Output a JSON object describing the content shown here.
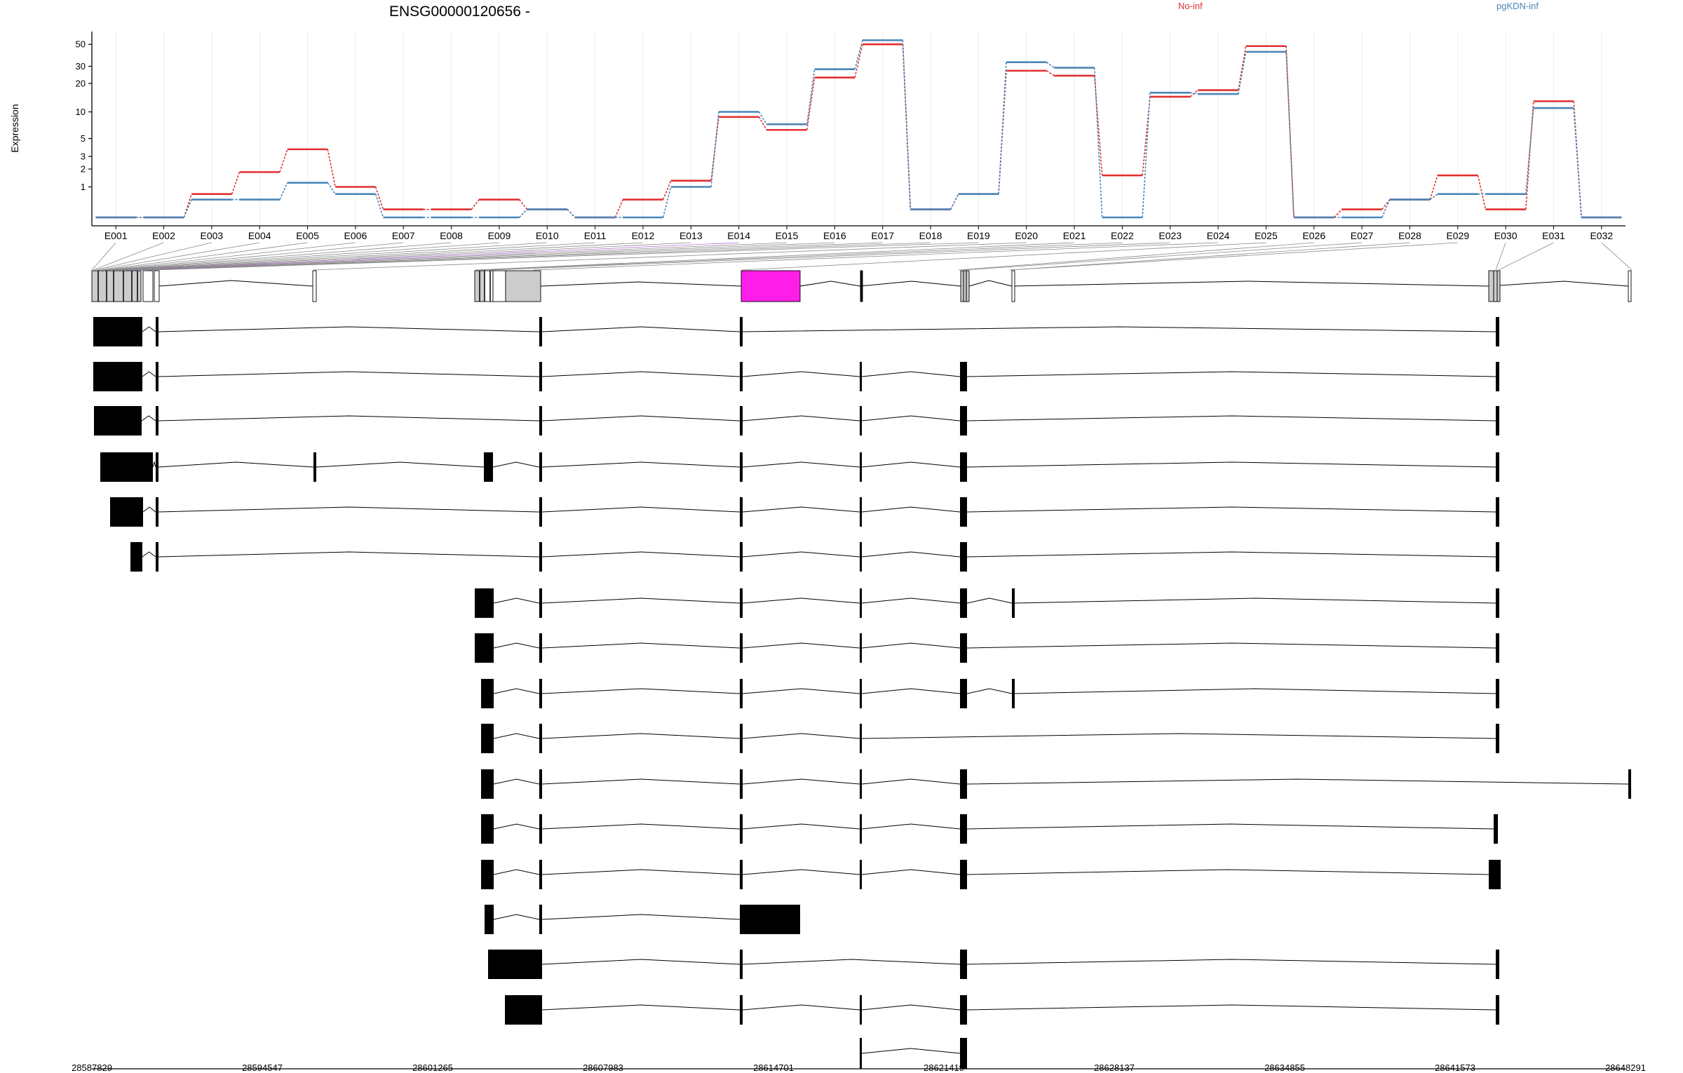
{
  "chart_data": {
    "type": "line",
    "title": "ENSG00000120656 -",
    "xlabel": "",
    "ylabel": "Expression",
    "yscale": "log",
    "yticks": [
      1,
      2,
      3,
      5,
      10,
      20,
      30,
      50
    ],
    "ytick_labels": [
      "1",
      "2",
      "3",
      "5",
      "10",
      "20",
      "30",
      "50"
    ],
    "ylim": [
      0,
      60
    ],
    "grid": true,
    "legend_position": "top",
    "colors": {
      "No-inf": "#e03030",
      "pgKDN-inf": "#4a86b8",
      "highlight": "#ff1ee8",
      "exon": "#000000",
      "exon_shaded": "#cccccc"
    },
    "categories": [
      "E001",
      "E002",
      "E003",
      "E004",
      "E005",
      "E006",
      "E007",
      "E008",
      "E009",
      "E010",
      "E011",
      "E012",
      "E013",
      "E014",
      "E015",
      "E016",
      "E017",
      "E018",
      "E019",
      "E020",
      "E021",
      "E022",
      "E023",
      "E024",
      "E025",
      "E026",
      "E027",
      "E028",
      "E029",
      "E030",
      "E031",
      "E032"
    ],
    "series": [
      {
        "name": "No-inf",
        "color": "#e03030",
        "values": [
          0,
          0,
          0.7,
          1.8,
          3.7,
          1.0,
          0.2,
          0.2,
          0.5,
          0.2,
          0,
          0.5,
          1.3,
          8.8,
          6.3,
          23,
          50,
          0.2,
          0.7,
          27,
          24,
          1.6,
          14.5,
          17,
          48,
          0,
          0.2,
          0.5,
          1.6,
          0.2,
          13,
          0
        ]
      },
      {
        "name": "pgKDN-inf",
        "color": "#4a86b8",
        "values": [
          0,
          0,
          0.5,
          0.5,
          1.2,
          0.7,
          0,
          0,
          0,
          0.2,
          0,
          0,
          1.0,
          10,
          7.3,
          28,
          55,
          0.2,
          0.7,
          33,
          29,
          0,
          16,
          15.5,
          42,
          0,
          0,
          0.5,
          0.7,
          0.7,
          11,
          0
        ]
      }
    ],
    "gene_track": {
      "genomic_coordinates": [
        "28587829",
        "28594547",
        "28601265",
        "28607983",
        "28614701",
        "28621419",
        "28628137",
        "28634855",
        "28641573",
        "28648291"
      ],
      "highlighted_exon": "E014",
      "transcript_count": 17
    }
  }
}
